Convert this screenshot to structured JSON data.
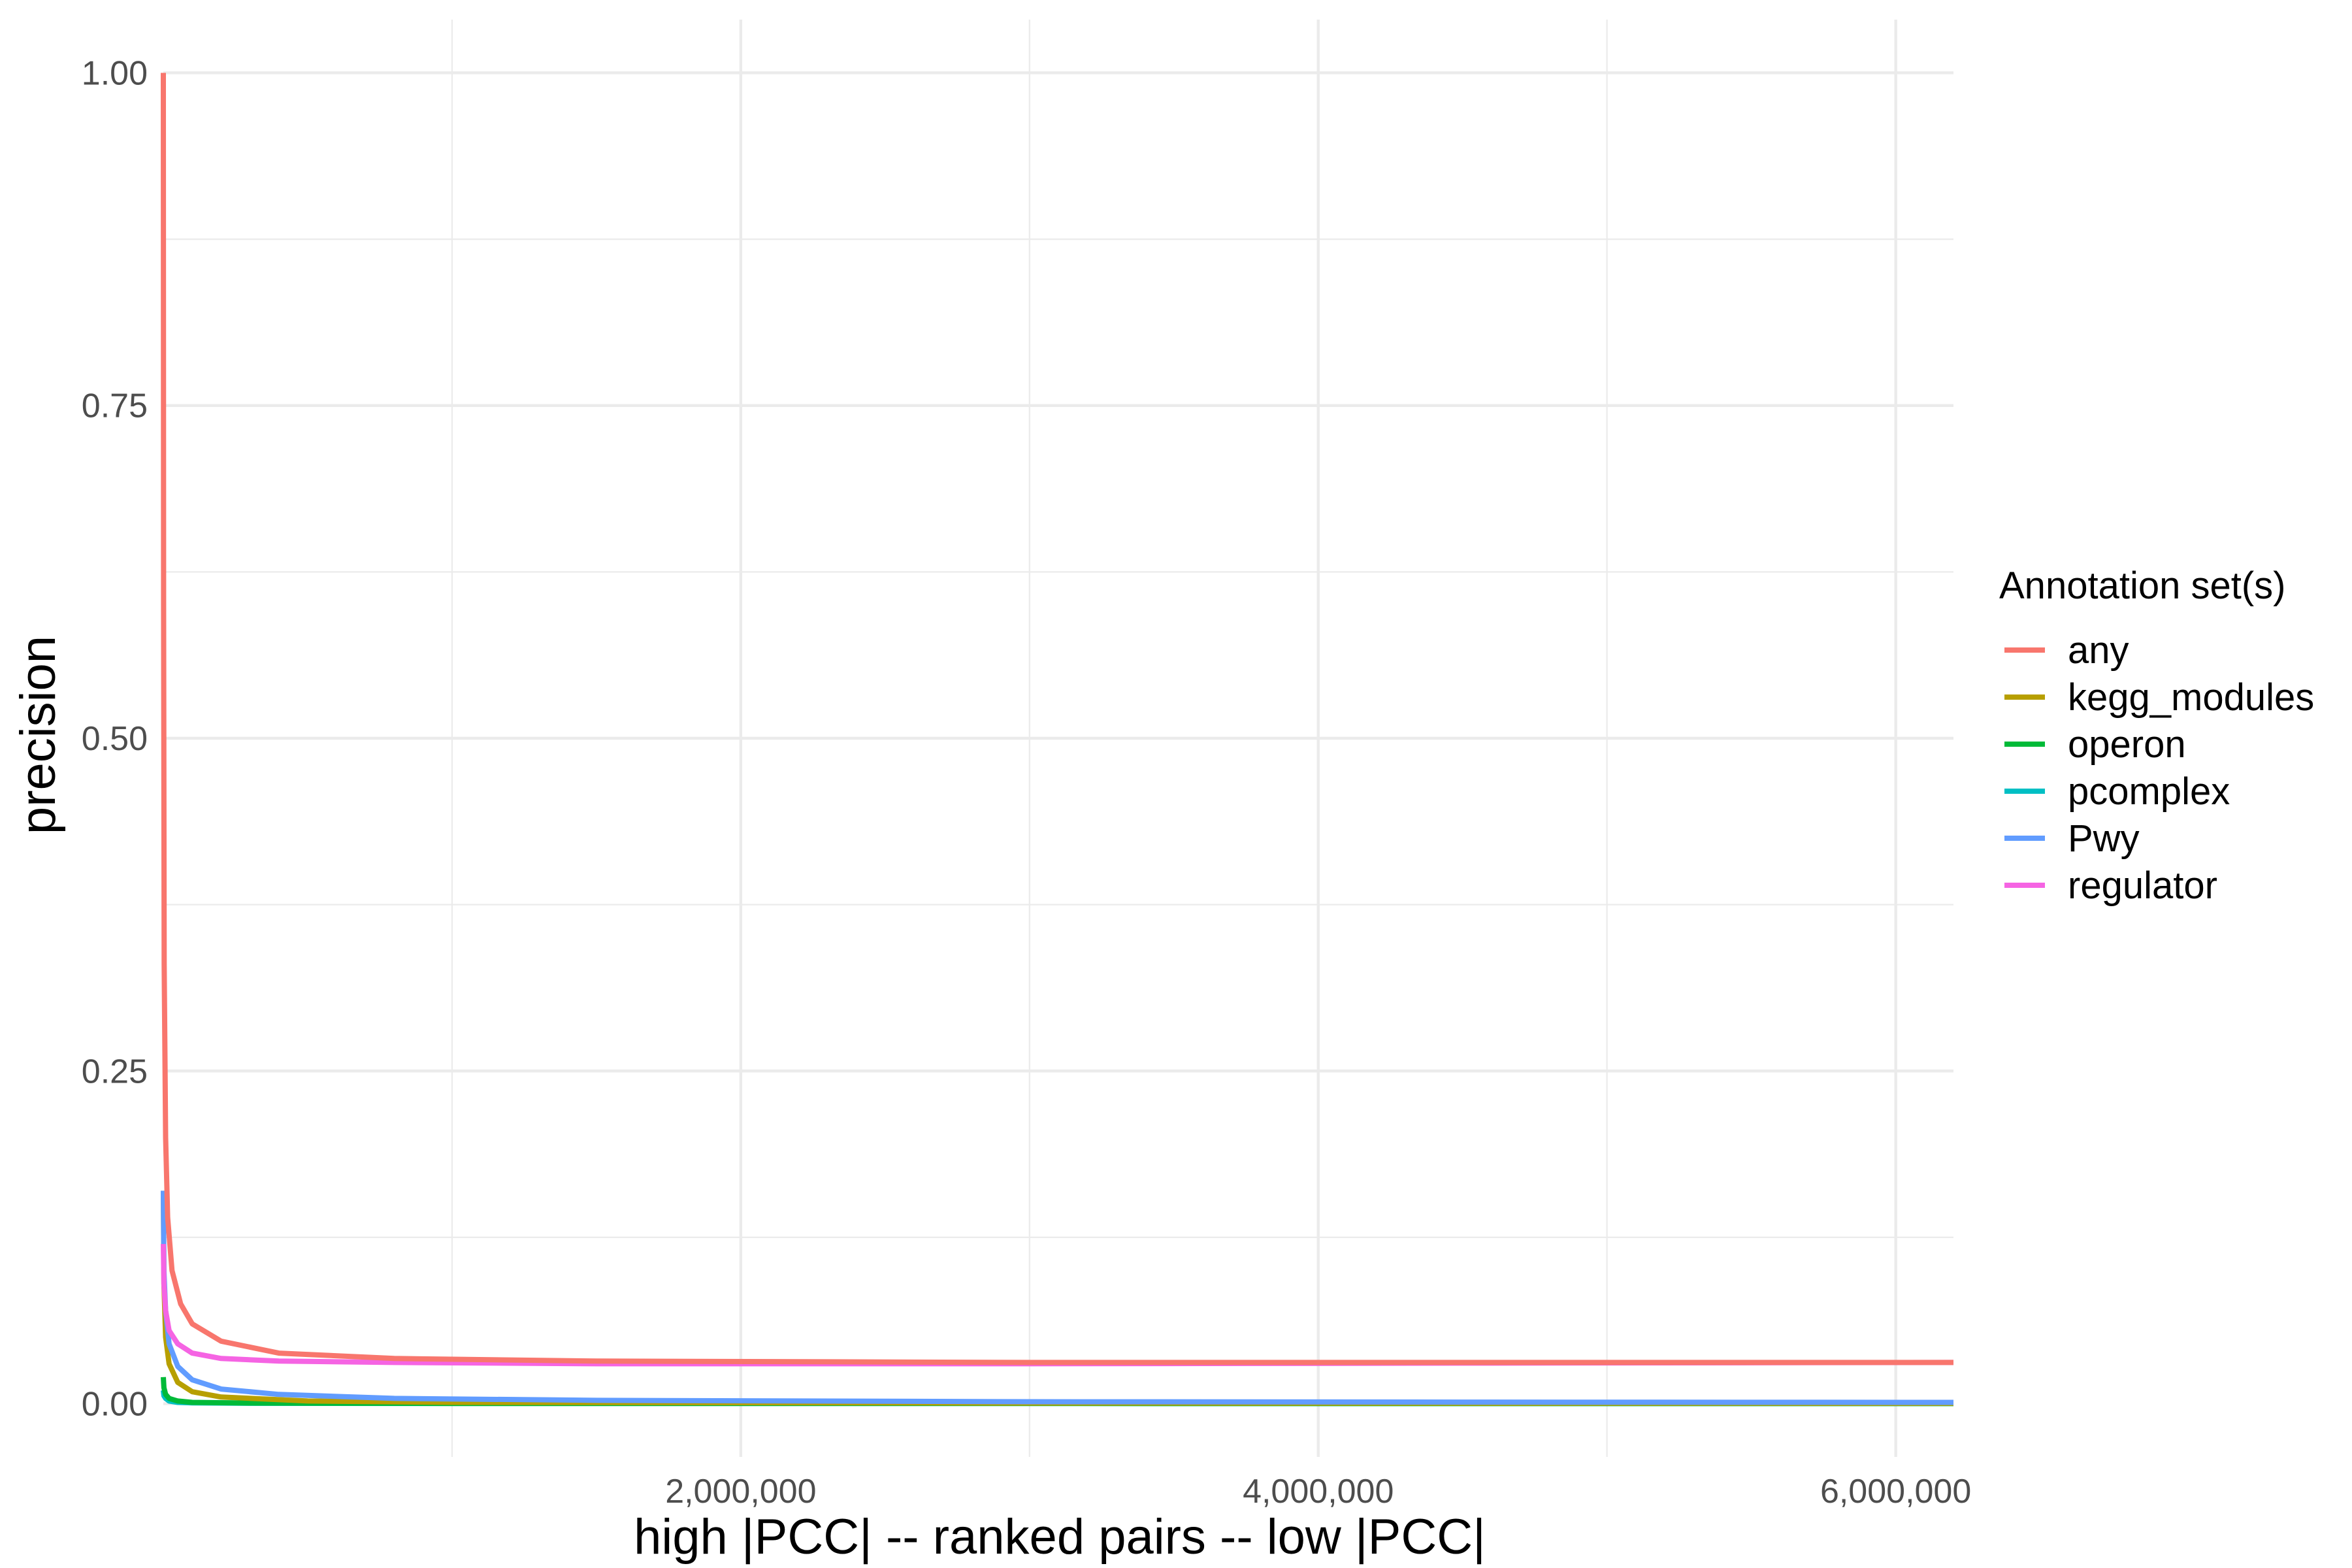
{
  "chart_data": {
    "type": "line",
    "title": "",
    "xlabel": "high |PCC| -- ranked pairs -- low |PCC|",
    "ylabel": "precision",
    "xlim": [
      0,
      6200000
    ],
    "ylim": [
      -0.04,
      1.04
    ],
    "x_ticks": [
      {
        "value": 2000000,
        "label": "2,000,000"
      },
      {
        "value": 4000000,
        "label": "4,000,000"
      },
      {
        "value": 6000000,
        "label": "6,000,000"
      }
    ],
    "x_minor_ticks": [
      1000000,
      3000000,
      5000000
    ],
    "y_ticks": [
      {
        "value": 0.0,
        "label": "0.00"
      },
      {
        "value": 0.25,
        "label": "0.25"
      },
      {
        "value": 0.5,
        "label": "0.50"
      },
      {
        "value": 0.75,
        "label": "0.75"
      },
      {
        "value": 1.0,
        "label": "1.00"
      }
    ],
    "y_minor_ticks": [
      0.125,
      0.375,
      0.625,
      0.875
    ],
    "grid": true,
    "legend": {
      "title": "Annotation set(s)",
      "position": "right"
    },
    "series": [
      {
        "name": "any",
        "color": "#F8766D",
        "x": [
          0,
          1000,
          3000,
          8000,
          15000,
          30000,
          60000,
          100000,
          200000,
          400000,
          800000,
          1500000,
          3000000,
          4500000,
          6200000
        ],
        "y": [
          1.0,
          0.6,
          0.33,
          0.2,
          0.14,
          0.1,
          0.075,
          0.06,
          0.047,
          0.038,
          0.034,
          0.032,
          0.031,
          0.031,
          0.031
        ]
      },
      {
        "name": "kegg_modules",
        "color": "#B79F00",
        "x": [
          0,
          2000,
          8000,
          20000,
          50000,
          100000,
          200000,
          500000,
          1000000,
          3000000,
          6200000
        ],
        "y": [
          0.16,
          0.09,
          0.05,
          0.03,
          0.016,
          0.009,
          0.005,
          0.002,
          0.001,
          0.0005,
          0.0003
        ]
      },
      {
        "name": "operon",
        "color": "#00BA38",
        "x": [
          0,
          2000,
          8000,
          20000,
          50000,
          100000,
          300000,
          1000000,
          6200000
        ],
        "y": [
          0.02,
          0.012,
          0.007,
          0.004,
          0.002,
          0.001,
          0.0005,
          0.0002,
          0.0001
        ]
      },
      {
        "name": "pcomplex",
        "color": "#00BFC4",
        "x": [
          0,
          2000,
          8000,
          20000,
          50000,
          100000,
          300000,
          1000000,
          6200000
        ],
        "y": [
          0.01,
          0.006,
          0.004,
          0.002,
          0.001,
          0.0006,
          0.0003,
          0.0002,
          0.0001
        ]
      },
      {
        "name": "Pwy",
        "color": "#619CFF",
        "x": [
          0,
          2000,
          8000,
          20000,
          50000,
          100000,
          200000,
          400000,
          800000,
          1500000,
          3000000,
          4500000,
          6200000
        ],
        "y": [
          0.16,
          0.1,
          0.07,
          0.045,
          0.028,
          0.018,
          0.011,
          0.007,
          0.004,
          0.0025,
          0.0015,
          0.0012,
          0.001
        ]
      },
      {
        "name": "regulator",
        "color": "#F564E3",
        "x": [
          0,
          2000,
          8000,
          20000,
          50000,
          100000,
          200000,
          400000,
          800000,
          1500000,
          3000000,
          4500000,
          6200000
        ],
        "y": [
          0.12,
          0.09,
          0.07,
          0.055,
          0.045,
          0.038,
          0.034,
          0.032,
          0.031,
          0.03,
          0.03,
          0.0305,
          0.031
        ]
      }
    ]
  }
}
